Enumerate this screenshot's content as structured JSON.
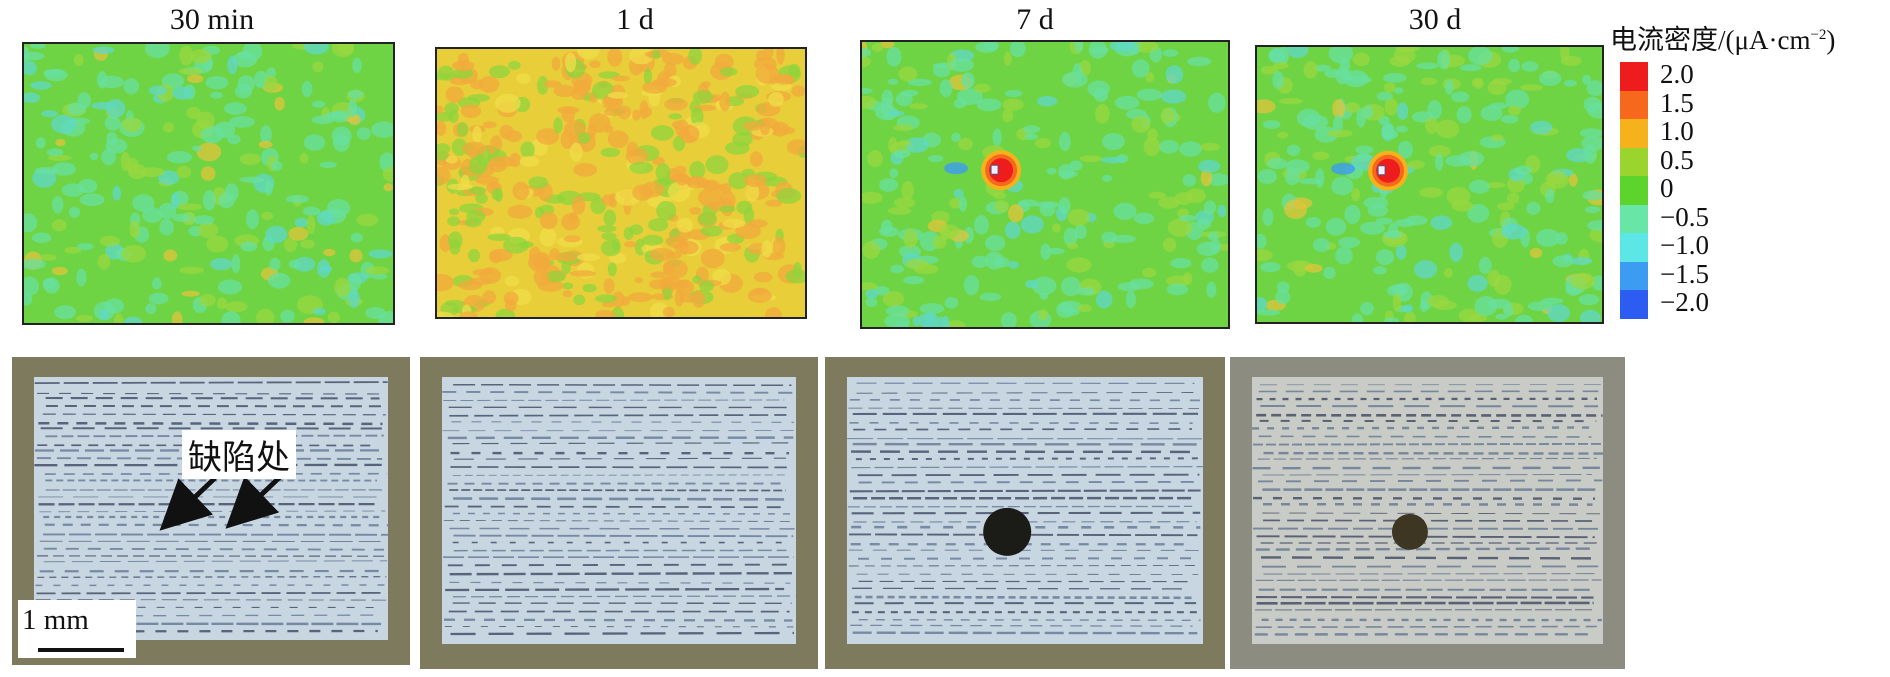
{
  "panels": [
    {
      "title": "30 min",
      "mode": "uniform-green",
      "pit": false
    },
    {
      "title": "1 d",
      "mode": "mottled-orange",
      "pit": false
    },
    {
      "title": "7 d",
      "mode": "green-with-hotspot",
      "pit": true
    },
    {
      "title": "30 d",
      "mode": "green-with-hotspot",
      "pit": true
    }
  ],
  "legend": {
    "title": "电流密度/(μA·cm",
    "title_sup": "−2",
    "title_close": ")",
    "entries": [
      {
        "label": "2.0",
        "color": "#ee1c1c"
      },
      {
        "label": "1.5",
        "color": "#f6691c"
      },
      {
        "label": "1.0",
        "color": "#f6b21c"
      },
      {
        "label": "0.5",
        "color": "#9ad42c"
      },
      {
        "label": "0",
        "color": "#5cd42c"
      },
      {
        "label": "−0.5",
        "color": "#68e6a8"
      },
      {
        "label": "−1.0",
        "color": "#5ce6e6"
      },
      {
        "label": "−1.5",
        "color": "#3c9cf2"
      },
      {
        "label": "−2.0",
        "color": "#2c5cf2"
      }
    ]
  },
  "annotation": {
    "text": "缺陷处"
  },
  "scale_bar": {
    "label": "1 mm"
  }
}
